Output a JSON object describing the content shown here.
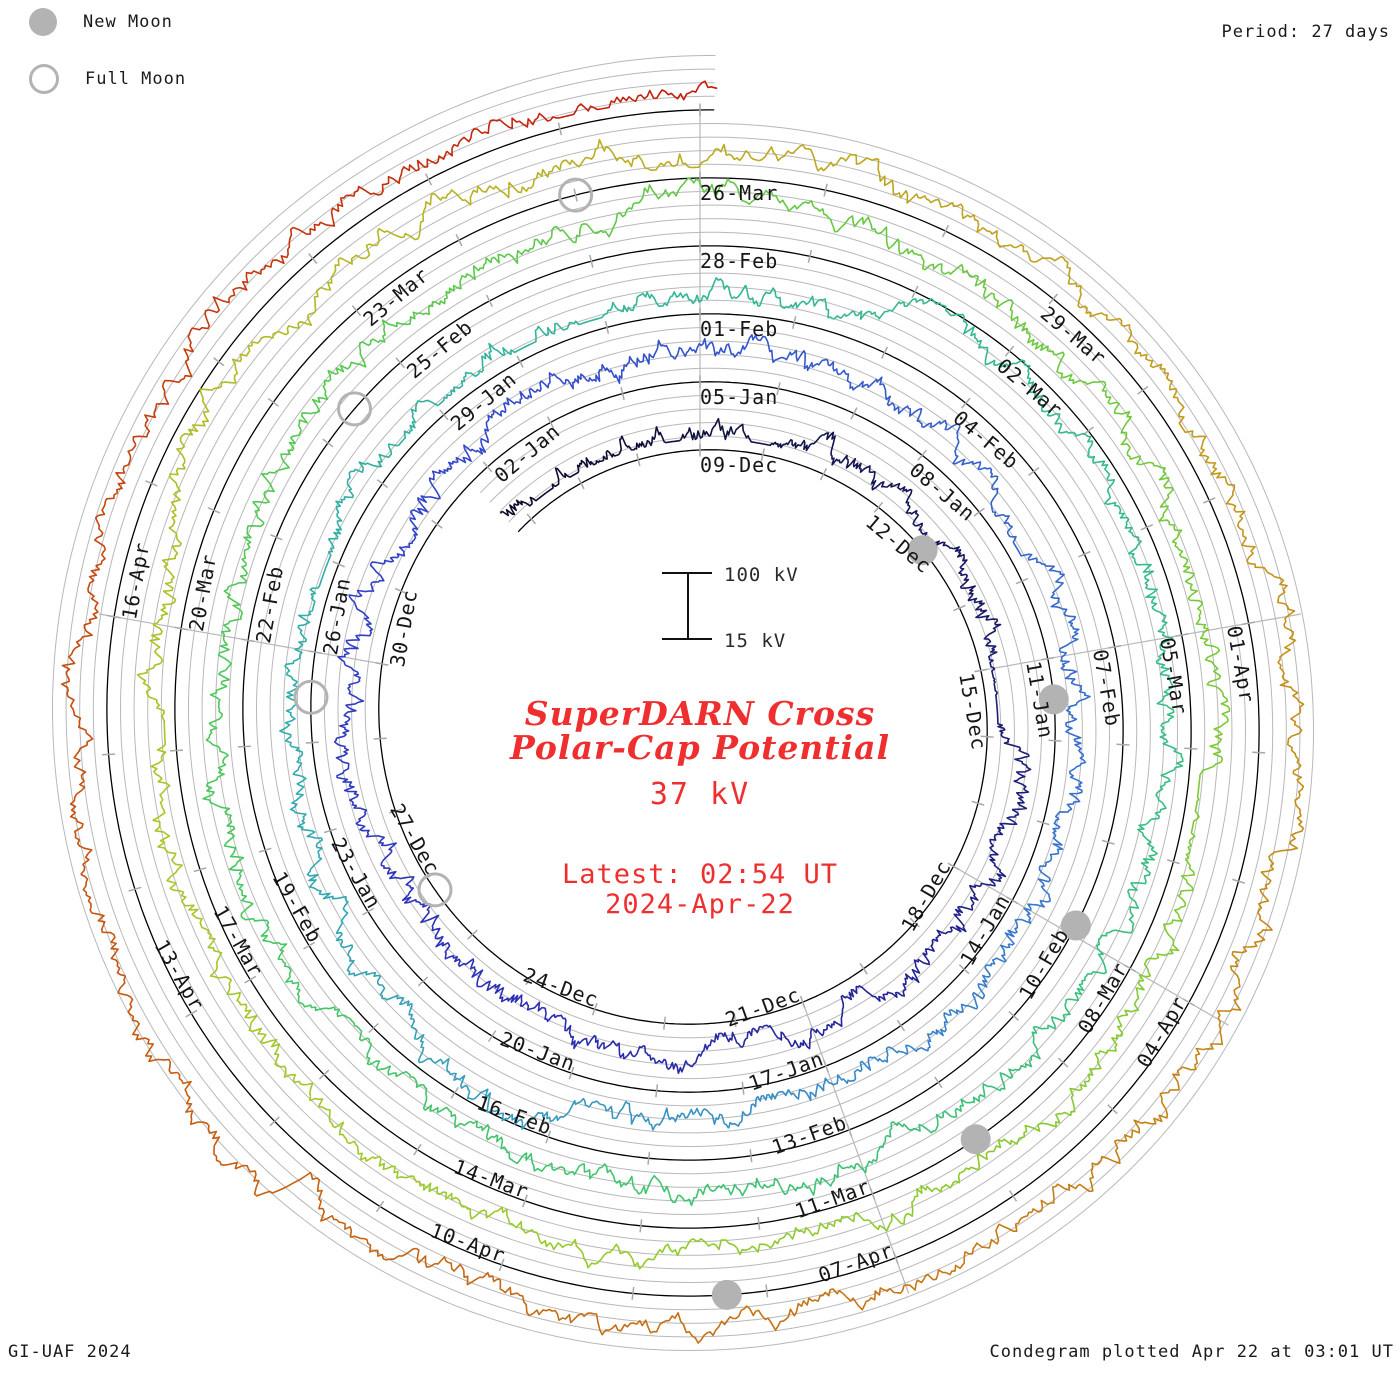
{
  "theme": {
    "red_text": "#ef2f2f",
    "grid_gray": "#b8b8b8",
    "tick_gray": "#a8a8a8",
    "moon_gray": "#b3b3b3",
    "baseline_black": "#000000",
    "label_black": "#161616"
  },
  "header": {
    "legend": [
      {
        "label": "New Moon",
        "type": "filled"
      },
      {
        "label": "Full Moon",
        "type": "open"
      }
    ],
    "period_label": "Period: 27 days"
  },
  "footer": {
    "left": "GI-UAF 2024",
    "right": "Condegram plotted Apr 22 at 03:01 UT"
  },
  "center": {
    "title_line1": "SuperDARN Cross",
    "title_line2": "Polar-Cap Potential",
    "current_value": "37 kV",
    "latest_line1": "Latest: 02:54 UT",
    "latest_line2": "2024-Apr-22"
  },
  "scale_bar": {
    "top_label": "100 kV",
    "bottom_label": "15 kV"
  },
  "chart_data": {
    "type": "line",
    "subtype": "condegram-spiral-time-series",
    "quantity": "SuperDARN cross polar-cap potential",
    "units": "kV",
    "period_days": 27,
    "value_range_kv": [
      15,
      100
    ],
    "gridline_step_kv": 20,
    "latest_value_kv": 37,
    "latest_time": "Latest: 02:54 UT 2024-Apr-22",
    "direction": "clockwise, one revolution per 27 days, 09-Dec at top of innermost ring",
    "trace_day_span": {
      "start_day": -3.3,
      "end_day": 135.12,
      "day_zero_date": "09-Dec"
    },
    "date_labels": [
      {
        "label": "09-Dec",
        "day": 0
      },
      {
        "label": "12-Dec",
        "day": 3
      },
      {
        "label": "15-Dec",
        "day": 6
      },
      {
        "label": "18-Dec",
        "day": 9
      },
      {
        "label": "21-Dec",
        "day": 12
      },
      {
        "label": "24-Dec",
        "day": 15
      },
      {
        "label": "27-Dec",
        "day": 18
      },
      {
        "label": "30-Dec",
        "day": 21
      },
      {
        "label": "02-Jan",
        "day": 24
      },
      {
        "label": "05-Jan",
        "day": 27
      },
      {
        "label": "08-Jan",
        "day": 30
      },
      {
        "label": "11-Jan",
        "day": 33
      },
      {
        "label": "14-Jan",
        "day": 36
      },
      {
        "label": "17-Jan",
        "day": 39
      },
      {
        "label": "20-Jan",
        "day": 42
      },
      {
        "label": "23-Jan",
        "day": 45
      },
      {
        "label": "26-Jan",
        "day": 48
      },
      {
        "label": "29-Jan",
        "day": 51
      },
      {
        "label": "01-Feb",
        "day": 54
      },
      {
        "label": "04-Feb",
        "day": 57
      },
      {
        "label": "07-Feb",
        "day": 60
      },
      {
        "label": "10-Feb",
        "day": 63
      },
      {
        "label": "13-Feb",
        "day": 66
      },
      {
        "label": "16-Feb",
        "day": 69
      },
      {
        "label": "19-Feb",
        "day": 72
      },
      {
        "label": "22-Feb",
        "day": 75
      },
      {
        "label": "25-Feb",
        "day": 78
      },
      {
        "label": "28-Feb",
        "day": 81
      },
      {
        "label": "02-Mar",
        "day": 84
      },
      {
        "label": "05-Mar",
        "day": 87
      },
      {
        "label": "08-Mar",
        "day": 90
      },
      {
        "label": "11-Mar",
        "day": 93
      },
      {
        "label": "14-Mar",
        "day": 96
      },
      {
        "label": "17-Mar",
        "day": 99
      },
      {
        "label": "20-Mar",
        "day": 102
      },
      {
        "label": "23-Mar",
        "day": 105
      },
      {
        "label": "26-Mar",
        "day": 108
      },
      {
        "label": "29-Mar",
        "day": 111
      },
      {
        "label": "01-Apr",
        "day": 114
      },
      {
        "label": "04-Apr",
        "day": 117
      },
      {
        "label": "07-Apr",
        "day": 120
      },
      {
        "label": "10-Apr",
        "day": 123
      },
      {
        "label": "13-Apr",
        "day": 126
      },
      {
        "label": "16-Apr",
        "day": 129
      }
    ],
    "moons": {
      "new": [
        {
          "date": "12-Dec",
          "day": 3.95
        },
        {
          "date": "11-Jan",
          "day": 33.5
        },
        {
          "date": "09-Feb",
          "day": 62.9
        },
        {
          "date": "10-Mar",
          "day": 92.0
        },
        {
          "date": "08-Apr",
          "day": 121.3
        }
      ],
      "full": [
        {
          "date": "27-Dec",
          "day": 17.8
        },
        {
          "date": "25-Jan",
          "day": 47.5
        },
        {
          "date": "24-Feb",
          "day": 77.4
        },
        {
          "date": "25-Mar",
          "day": 107.0
        }
      ]
    },
    "spoke_day_phases": [
      0,
      6,
      9,
      12,
      21
    ],
    "color_stops": [
      {
        "day": -3.3,
        "color": "#0a0a28"
      },
      {
        "day": 6,
        "color": "#1c1c6e"
      },
      {
        "day": 12,
        "color": "#26269e"
      },
      {
        "day": 18,
        "color": "#2e34bc"
      },
      {
        "day": 24,
        "color": "#3347cb"
      },
      {
        "day": 30,
        "color": "#3560cd"
      },
      {
        "day": 36,
        "color": "#3878cd"
      },
      {
        "day": 42,
        "color": "#369bc0"
      },
      {
        "day": 47,
        "color": "#2fadab"
      },
      {
        "day": 53,
        "color": "#33b598"
      },
      {
        "day": 60,
        "color": "#35bc88"
      },
      {
        "day": 66,
        "color": "#3cc276"
      },
      {
        "day": 72,
        "color": "#46c763"
      },
      {
        "day": 78,
        "color": "#58c94e"
      },
      {
        "day": 84,
        "color": "#6cc93e"
      },
      {
        "day": 90,
        "color": "#82ca30"
      },
      {
        "day": 96,
        "color": "#98cb29"
      },
      {
        "day": 101,
        "color": "#aac426"
      },
      {
        "day": 106,
        "color": "#b8b322"
      },
      {
        "day": 111,
        "color": "#c1a01d"
      },
      {
        "day": 116,
        "color": "#c58a17"
      },
      {
        "day": 121,
        "color": "#c77212"
      },
      {
        "day": 126,
        "color": "#c75a10"
      },
      {
        "day": 130,
        "color": "#c6440e"
      },
      {
        "day": 135.2,
        "color": "#c5190c"
      }
    ],
    "noise": {
      "seed": 20240422,
      "samples_per_day": 48,
      "typical_kv": 30
    }
  }
}
